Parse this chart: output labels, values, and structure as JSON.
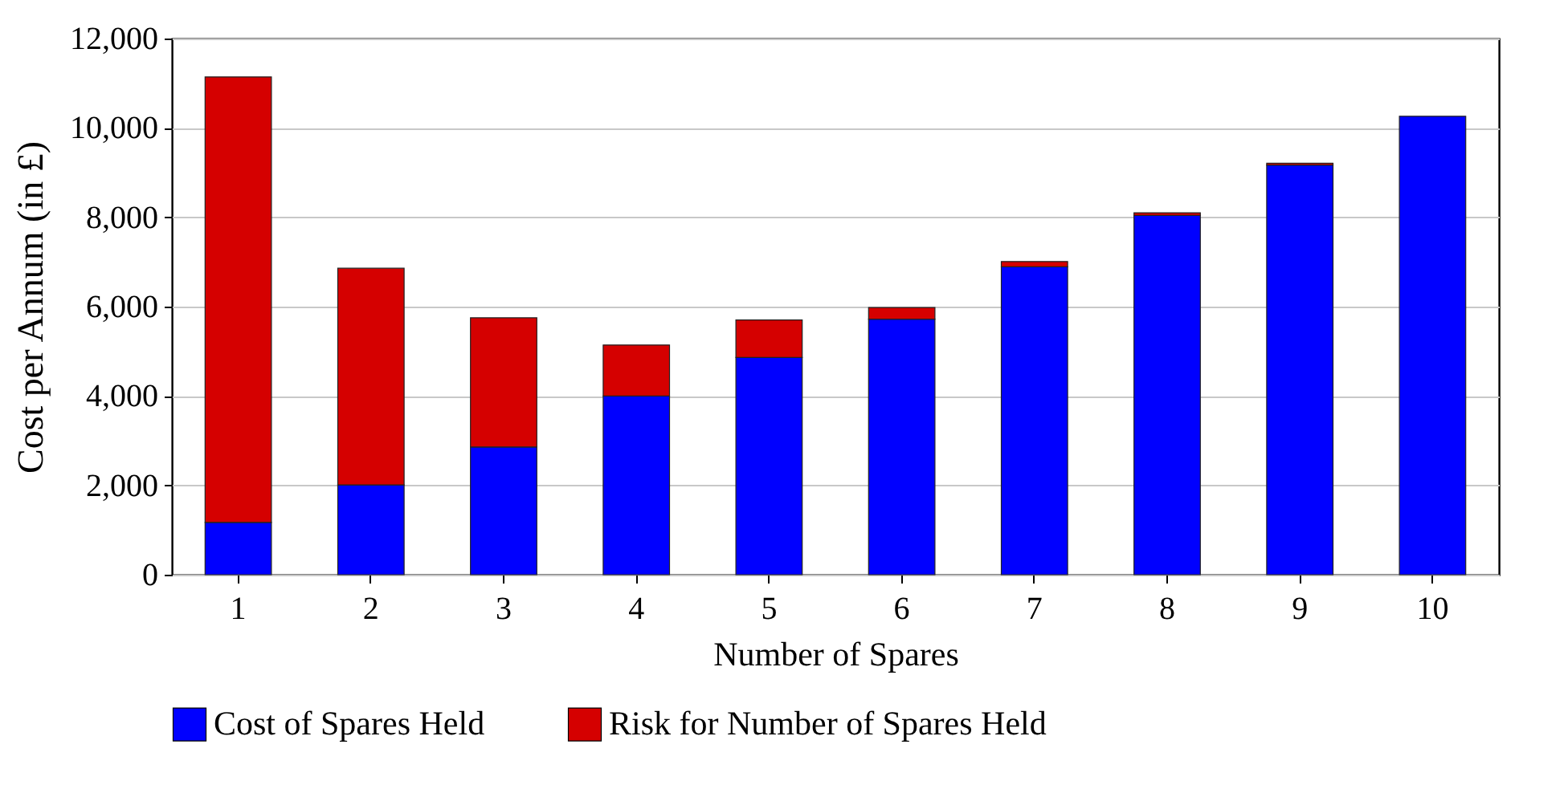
{
  "chart_data": {
    "type": "bar",
    "xlabel": "Number of Spares",
    "ylabel": "Cost per Annum (in £)",
    "categories": [
      "1",
      "2",
      "3",
      "4",
      "5",
      "6",
      "7",
      "8",
      "9",
      "10"
    ],
    "stacked": true,
    "series": [
      {
        "name": "Cost of Spares Held",
        "color": "#0000ff",
        "values": [
          1170,
          2010,
          2860,
          4000,
          4860,
          5720,
          6890,
          8040,
          9170,
          10260
        ]
      },
      {
        "name": "Risk for Number of Spares Held",
        "color": "#d50000",
        "values": [
          9970,
          4850,
          2890,
          1140,
          840,
          260,
          120,
          60,
          40,
          null
        ]
      }
    ],
    "ylim": [
      0,
      12000
    ],
    "yticks": [
      {
        "value": 0,
        "label": "0"
      },
      {
        "value": 2000,
        "label": "2,000"
      },
      {
        "value": 4000,
        "label": "4,000"
      },
      {
        "value": 6000,
        "label": "6,000"
      },
      {
        "value": 8000,
        "label": "8,000"
      },
      {
        "value": 10000,
        "label": "10,000"
      },
      {
        "value": 12000,
        "label": "12,000"
      }
    ],
    "grid": "y",
    "legend": "bottom"
  }
}
